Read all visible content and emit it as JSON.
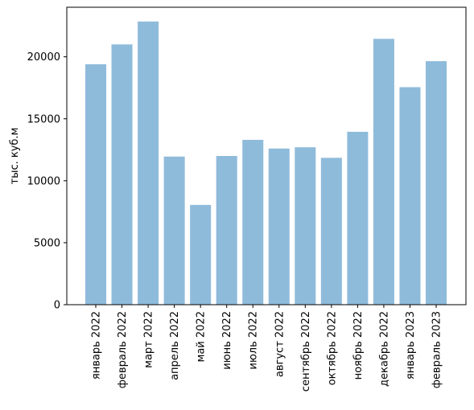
{
  "chart_data": {
    "type": "bar",
    "title": "",
    "xlabel": "",
    "ylabel": "тыс. куб.м",
    "ylim": [
      0,
      24000
    ],
    "yticks": [
      0,
      5000,
      10000,
      15000,
      20000
    ],
    "grid": false,
    "bar_color": "#8fbbdb",
    "categories": [
      "январь 2022",
      "февраль 2022",
      "март 2022",
      "апрель 2022",
      "май 2022",
      "июнь 2022",
      "июль 2022",
      "август 2022",
      "сентябрь 2022",
      "октябрь 2022",
      "ноябрь 2022",
      "декабрь 2022",
      "январь 2023",
      "февраль 2023"
    ],
    "values": [
      19400,
      21000,
      22850,
      11950,
      8050,
      12000,
      13300,
      12600,
      12700,
      11850,
      13950,
      21450,
      17550,
      19650
    ]
  }
}
